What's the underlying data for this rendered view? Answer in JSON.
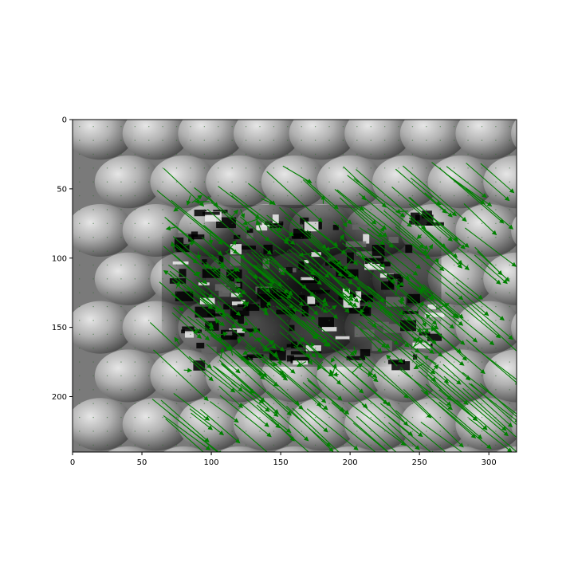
{
  "chart_data": {
    "type": "quiver",
    "background": "grayscale image with embossed sphere texture",
    "xlim": [
      0,
      320
    ],
    "ylim": [
      240,
      0
    ],
    "y_axis_inverted": true,
    "x_ticks": [
      0,
      50,
      100,
      150,
      200,
      250,
      300
    ],
    "y_ticks": [
      0,
      50,
      100,
      150,
      200
    ],
    "grid": false,
    "quiver_color": "#008000",
    "dominant_direction": "down-right",
    "dominant_vector": {
      "dx": 33,
      "dy": 28
    },
    "active_region": {
      "x": [
        55,
        315
      ],
      "y": [
        30,
        240
      ]
    },
    "dense_dark_region": {
      "x": [
        70,
        260
      ],
      "y": [
        65,
        175
      ]
    }
  },
  "axes": {
    "x_tick_labels": [
      "0",
      "50",
      "100",
      "150",
      "200",
      "250",
      "300"
    ],
    "y_tick_labels": [
      "0",
      "50",
      "100",
      "150",
      "200"
    ]
  },
  "colors": {
    "quiver": "#008000",
    "frame": "#000000",
    "background": "#ffffff"
  }
}
